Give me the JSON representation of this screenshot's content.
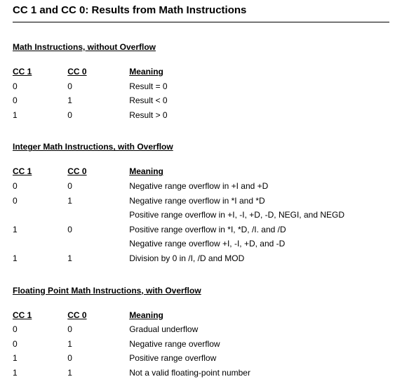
{
  "page_title": "CC 1 and CC 0: Results from Math Instructions",
  "sections": [
    {
      "heading": "Math Instructions, without Overflow",
      "headers": {
        "cc1": "CC 1",
        "cc0": "CC 0",
        "meaning": "Meaning"
      },
      "rows": [
        {
          "cc1": "0",
          "cc0": "0",
          "meaning": "Result = 0"
        },
        {
          "cc1": "0",
          "cc0": "1",
          "meaning": "Result < 0"
        },
        {
          "cc1": "1",
          "cc0": "0",
          "meaning": "Result > 0"
        }
      ]
    },
    {
      "heading": "Integer Math Instructions, with Overflow",
      "headers": {
        "cc1": "CC 1",
        "cc0": "CC 0",
        "meaning": "Meaning"
      },
      "rows": [
        {
          "cc1": "0",
          "cc0": "0",
          "meaning": "Negative range overflow in +I and +D"
        },
        {
          "cc1": "0",
          "cc0": "1",
          "meaning": "Negative range overflow in *I and *D"
        },
        {
          "cc1": "",
          "cc0": "",
          "meaning": "Positive range overflow in +I, -I, +D, -D, NEGI, and NEGD"
        },
        {
          "cc1": "1",
          "cc0": "0",
          "meaning": "Positive range overflow in *I, *D, /I. and /D"
        },
        {
          "cc1": "",
          "cc0": "",
          "meaning": "Negative range overflow +I, -I, +D, and -D"
        },
        {
          "cc1": "1",
          "cc0": "1",
          "meaning": "Division by 0 in /I, /D and MOD"
        }
      ]
    },
    {
      "heading": "Floating Point Math Instructions, with Overflow",
      "headers": {
        "cc1": "CC 1",
        "cc0": "CC 0",
        "meaning": "Meaning"
      },
      "rows": [
        {
          "cc1": "0",
          "cc0": "0",
          "meaning": "Gradual underflow"
        },
        {
          "cc1": "0",
          "cc0": "1",
          "meaning": "Negative range overflow"
        },
        {
          "cc1": "1",
          "cc0": "0",
          "meaning": "Positive range overflow"
        },
        {
          "cc1": "1",
          "cc0": "1",
          "meaning": "Not a valid floating-point number"
        }
      ]
    }
  ]
}
